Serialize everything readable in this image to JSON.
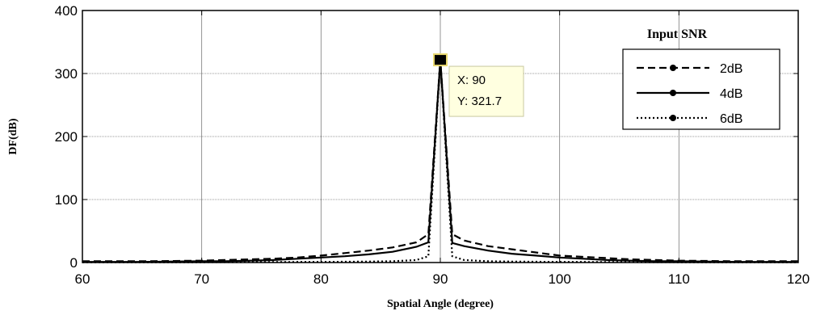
{
  "chart_data": {
    "type": "line",
    "xlabel": "Spatial Angle (degree)",
    "ylabel": "DF(dB)",
    "xlim": [
      60,
      120
    ],
    "ylim": [
      0,
      400
    ],
    "xticks": [
      60,
      70,
      80,
      90,
      100,
      110,
      120
    ],
    "yticks": [
      0,
      100,
      200,
      300,
      400
    ],
    "grid": true,
    "legend": {
      "title": "Input SNR",
      "placement": "top-right"
    },
    "datatip": {
      "x_text": "X: 90",
      "y_text": "Y: 321.7",
      "x": 90,
      "y": 321.7
    },
    "series": [
      {
        "name": "2dB",
        "style": "dashed",
        "color": "#000000",
        "x": [
          60,
          65,
          70,
          72,
          74,
          76,
          78,
          80,
          82,
          84,
          86,
          88,
          89,
          90,
          91,
          92,
          94,
          96,
          98,
          100,
          102,
          104,
          106,
          108,
          110,
          115,
          120
        ],
        "y": [
          2,
          2,
          3,
          4,
          5,
          6,
          8,
          11,
          15,
          19,
          24,
          32,
          45,
          321.7,
          45,
          35,
          26,
          21,
          16,
          11,
          9,
          7,
          5,
          4,
          3,
          2,
          2
        ]
      },
      {
        "name": "4dB",
        "style": "solid",
        "color": "#000000",
        "x": [
          60,
          65,
          70,
          72,
          74,
          76,
          78,
          80,
          82,
          84,
          86,
          88,
          89,
          90,
          91,
          92,
          94,
          96,
          98,
          100,
          102,
          104,
          106,
          108,
          110,
          115,
          120
        ],
        "y": [
          1,
          1,
          2,
          2,
          3,
          4,
          6,
          8,
          10,
          13,
          17,
          25,
          32,
          321.7,
          31,
          26,
          19,
          14,
          11,
          8,
          6,
          4,
          3,
          2,
          2,
          1,
          1
        ]
      },
      {
        "name": "6dB",
        "style": "dotted",
        "color": "#000000",
        "x": [
          60,
          70,
          80,
          84,
          86,
          88,
          89,
          90,
          91,
          92,
          94,
          96,
          100,
          110,
          120
        ],
        "y": [
          0.5,
          0.5,
          1,
          1.5,
          2,
          4,
          10,
          321.7,
          10,
          4,
          2,
          1.5,
          1,
          0.5,
          0.5
        ]
      }
    ]
  }
}
